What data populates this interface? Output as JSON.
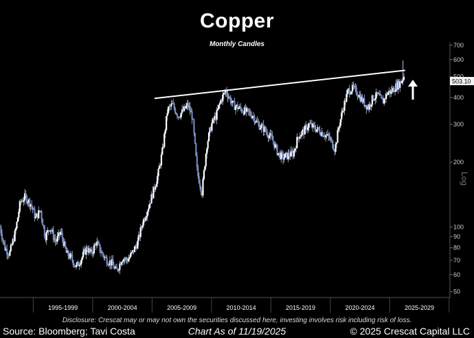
{
  "header": {
    "title": "Copper",
    "subtitle": "Monthly Candles"
  },
  "footer": {
    "disclosure": "Disclosure: Crescat may or may not own the securities discussed here, investing involves risk including risk of loss.",
    "source": "Source: Bloomberg; Tavi Costa",
    "as_of": "Chart As of 11/19/2025",
    "copyright": "© 2025 Crescat Capital LLC"
  },
  "colors": {
    "background": "#000000",
    "candle": "#b9c4dc",
    "candle_dark": "#6f86c2",
    "trendline": "#ffffff",
    "arrow": "#ffffff"
  },
  "chart_data": {
    "type": "line",
    "title": "Copper",
    "subtitle": "Monthly Candles",
    "y_scale": "log",
    "ylabel": "Log",
    "ylim": [
      47,
      720
    ],
    "y_ticks": [
      50,
      60,
      70,
      80,
      90,
      100,
      200,
      300,
      400,
      500,
      600,
      700
    ],
    "x_tick_labels": [
      "1995-1999",
      "2000-2004",
      "2005-2009",
      "2010-2014",
      "2015-2019",
      "2020-2024",
      "2025-2029"
    ],
    "last_price_label": "503.10",
    "series": [
      {
        "x": [
          1991.9,
          1992.3,
          1992.7,
          1993.2,
          1993.6,
          1994.0,
          1994.5,
          1994.9,
          1995.3,
          1995.7,
          1996.1,
          1996.6,
          1997.0,
          1997.5,
          1997.9,
          1998.3,
          1998.8,
          1999.2,
          1999.6,
          2000.0,
          2000.5,
          2000.9,
          2001.3,
          2001.7,
          2002.2,
          2002.6,
          2003.0,
          2003.5,
          2003.9,
          2004.3,
          2004.7,
          2005.2,
          2005.6,
          2006.0,
          2006.4,
          2006.9,
          2007.3,
          2007.7,
          2008.1,
          2008.5,
          2008.9,
          2009.3,
          2009.7,
          2010.1,
          2010.5,
          2010.9,
          2011.2,
          2011.5,
          2011.9,
          2012.3,
          2012.8,
          2013.2,
          2013.6,
          2014.0,
          2014.5,
          2014.9,
          2015.3,
          2015.7,
          2016.1,
          2016.6,
          2017.0,
          2017.5,
          2017.9,
          2018.3,
          2018.8,
          2019.2,
          2019.6,
          2020.1,
          2020.4,
          2020.8,
          2021.2,
          2021.6,
          2022.0,
          2022.5,
          2022.9,
          2023.3,
          2023.7,
          2024.1,
          2024.5,
          2024.9,
          2025.3,
          2025.6,
          2025.9
        ],
        "values": [
          100,
          80,
          75,
          95,
          130,
          138,
          128,
          110,
          120,
          90,
          100,
          85,
          95,
          75,
          72,
          65,
          72,
          80,
          75,
          85,
          75,
          70,
          68,
          62,
          72,
          70,
          75,
          85,
          105,
          120,
          140,
          175,
          230,
          350,
          370,
          330,
          345,
          370,
          325,
          180,
          145,
          240,
          300,
          330,
          390,
          430,
          400,
          370,
          360,
          350,
          340,
          330,
          300,
          290,
          270,
          250,
          220,
          210,
          215,
          220,
          265,
          280,
          300,
          290,
          280,
          270,
          260,
          230,
          290,
          360,
          430,
          440,
          420,
          380,
          360,
          400,
          410,
          380,
          420,
          430,
          455,
          470,
          503.1
        ],
        "high": 595
      }
    ],
    "trendline": {
      "x": [
        2004.9,
        2026.0
      ],
      "y": [
        396,
        535
      ]
    },
    "annotations": [
      "up-arrow"
    ]
  }
}
